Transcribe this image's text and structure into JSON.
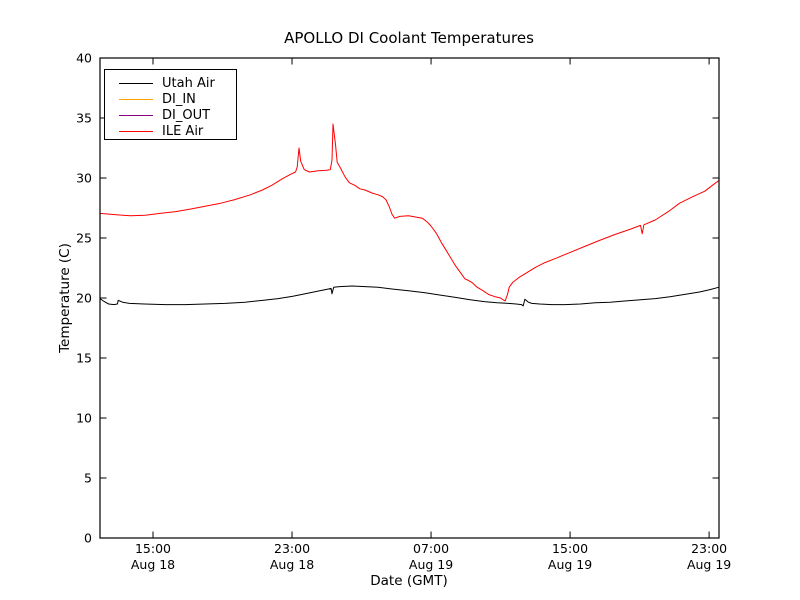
{
  "chart_data": {
    "type": "line",
    "title": "APOLLO DI Coolant Temperatures",
    "xlabel": "Date (GMT)",
    "ylabel": "Temperature (C)",
    "grid": false,
    "legend_position": "upper-left",
    "ylim": [
      0,
      40
    ],
    "y_ticks": [
      "0",
      "5",
      "10",
      "15",
      "20",
      "25",
      "30",
      "35",
      "40"
    ],
    "y_tick_values": [
      0,
      5,
      10,
      15,
      20,
      25,
      30,
      35,
      40
    ],
    "x_axis_note": "x values are hours since Aug 18 00:00 GMT",
    "xlim": [
      11.95,
      47.57
    ],
    "x_ticks": [
      {
        "value": 15,
        "time": "15:00",
        "date": "Aug 18"
      },
      {
        "value": 23,
        "time": "23:00",
        "date": "Aug 18"
      },
      {
        "value": 31,
        "time": "07:00",
        "date": "Aug 19"
      },
      {
        "value": 39,
        "time": "15:00",
        "date": "Aug 19"
      },
      {
        "value": 47,
        "time": "23:00",
        "date": "Aug 19"
      }
    ],
    "series": [
      {
        "name": "Utah Air",
        "color": "#000000",
        "points": [
          [
            11.95,
            19.95
          ],
          [
            12.2,
            19.7
          ],
          [
            12.45,
            19.5
          ],
          [
            12.75,
            19.45
          ],
          [
            12.95,
            19.5
          ],
          [
            13.0,
            19.8
          ],
          [
            13.25,
            19.65
          ],
          [
            13.65,
            19.55
          ],
          [
            14.5,
            19.5
          ],
          [
            15.7,
            19.45
          ],
          [
            16.85,
            19.45
          ],
          [
            18.0,
            19.5
          ],
          [
            19.15,
            19.55
          ],
          [
            20.3,
            19.65
          ],
          [
            21.3,
            19.8
          ],
          [
            22.2,
            19.95
          ],
          [
            23.05,
            20.15
          ],
          [
            23.9,
            20.4
          ],
          [
            24.6,
            20.6
          ],
          [
            25.1,
            20.75
          ],
          [
            25.25,
            20.8
          ],
          [
            25.3,
            20.35
          ],
          [
            25.4,
            20.9
          ],
          [
            25.75,
            20.95
          ],
          [
            26.45,
            21.0
          ],
          [
            27.2,
            20.95
          ],
          [
            27.95,
            20.9
          ],
          [
            28.75,
            20.75
          ],
          [
            29.7,
            20.6
          ],
          [
            30.6,
            20.45
          ],
          [
            31.5,
            20.25
          ],
          [
            32.4,
            20.05
          ],
          [
            33.25,
            19.85
          ],
          [
            34.05,
            19.7
          ],
          [
            34.8,
            19.6
          ],
          [
            35.45,
            19.55
          ],
          [
            35.9,
            19.5
          ],
          [
            36.2,
            19.45
          ],
          [
            36.3,
            19.35
          ],
          [
            36.4,
            19.9
          ],
          [
            36.6,
            19.65
          ],
          [
            36.8,
            19.55
          ],
          [
            37.25,
            19.5
          ],
          [
            37.95,
            19.45
          ],
          [
            38.7,
            19.45
          ],
          [
            39.6,
            19.5
          ],
          [
            40.45,
            19.6
          ],
          [
            41.3,
            19.65
          ],
          [
            42.15,
            19.75
          ],
          [
            43.05,
            19.85
          ],
          [
            43.9,
            19.95
          ],
          [
            44.75,
            20.1
          ],
          [
            45.6,
            20.3
          ],
          [
            46.45,
            20.5
          ],
          [
            47.05,
            20.7
          ],
          [
            47.57,
            20.9
          ]
        ]
      },
      {
        "name": "DI_IN",
        "color": "#ffa500",
        "points": []
      },
      {
        "name": "DI_OUT",
        "color": "#800080",
        "points": []
      },
      {
        "name": "ILE Air",
        "color": "#ff0000",
        "points": [
          [
            11.95,
            27.05
          ],
          [
            12.8,
            26.95
          ],
          [
            13.7,
            26.85
          ],
          [
            14.55,
            26.9
          ],
          [
            15.4,
            27.05
          ],
          [
            16.3,
            27.2
          ],
          [
            17.1,
            27.4
          ],
          [
            18.0,
            27.65
          ],
          [
            18.9,
            27.9
          ],
          [
            19.7,
            28.2
          ],
          [
            20.6,
            28.6
          ],
          [
            21.3,
            29.0
          ],
          [
            21.85,
            29.4
          ],
          [
            22.4,
            29.9
          ],
          [
            22.9,
            30.3
          ],
          [
            23.2,
            30.5
          ],
          [
            23.3,
            30.9
          ],
          [
            23.4,
            32.5
          ],
          [
            23.5,
            31.4
          ],
          [
            23.7,
            30.7
          ],
          [
            24.0,
            30.5
          ],
          [
            24.5,
            30.6
          ],
          [
            25.0,
            30.65
          ],
          [
            25.2,
            30.7
          ],
          [
            25.3,
            31.5
          ],
          [
            25.36,
            34.5
          ],
          [
            25.5,
            32.8
          ],
          [
            25.6,
            31.3
          ],
          [
            25.8,
            30.8
          ],
          [
            26.05,
            30.1
          ],
          [
            26.3,
            29.6
          ],
          [
            26.6,
            29.4
          ],
          [
            26.9,
            29.1
          ],
          [
            27.2,
            29.0
          ],
          [
            27.6,
            28.75
          ],
          [
            27.95,
            28.6
          ],
          [
            28.2,
            28.45
          ],
          [
            28.4,
            28.2
          ],
          [
            28.6,
            27.6
          ],
          [
            28.75,
            27.0
          ],
          [
            28.9,
            26.65
          ],
          [
            29.2,
            26.8
          ],
          [
            29.7,
            26.85
          ],
          [
            30.1,
            26.75
          ],
          [
            30.5,
            26.65
          ],
          [
            30.8,
            26.3
          ],
          [
            31.0,
            26.0
          ],
          [
            31.3,
            25.4
          ],
          [
            31.6,
            24.6
          ],
          [
            31.9,
            23.9
          ],
          [
            32.15,
            23.3
          ],
          [
            32.4,
            22.7
          ],
          [
            32.7,
            22.1
          ],
          [
            32.95,
            21.6
          ],
          [
            33.1,
            21.5
          ],
          [
            33.35,
            21.3
          ],
          [
            33.65,
            20.9
          ],
          [
            34.0,
            20.6
          ],
          [
            34.3,
            20.3
          ],
          [
            34.7,
            20.1
          ],
          [
            35.0,
            20.0
          ],
          [
            35.15,
            19.85
          ],
          [
            35.26,
            19.75
          ],
          [
            35.4,
            20.3
          ],
          [
            35.5,
            20.9
          ],
          [
            35.7,
            21.3
          ],
          [
            36.05,
            21.7
          ],
          [
            36.5,
            22.1
          ],
          [
            37.0,
            22.55
          ],
          [
            37.55,
            22.95
          ],
          [
            38.25,
            23.35
          ],
          [
            39.0,
            23.8
          ],
          [
            39.85,
            24.3
          ],
          [
            40.7,
            24.8
          ],
          [
            41.6,
            25.3
          ],
          [
            42.5,
            25.75
          ],
          [
            43.05,
            26.05
          ],
          [
            43.15,
            25.35
          ],
          [
            43.25,
            26.1
          ],
          [
            43.9,
            26.5
          ],
          [
            44.65,
            27.2
          ],
          [
            45.3,
            27.9
          ],
          [
            46.0,
            28.4
          ],
          [
            46.75,
            28.9
          ],
          [
            47.2,
            29.4
          ],
          [
            47.57,
            29.8
          ]
        ]
      }
    ]
  }
}
